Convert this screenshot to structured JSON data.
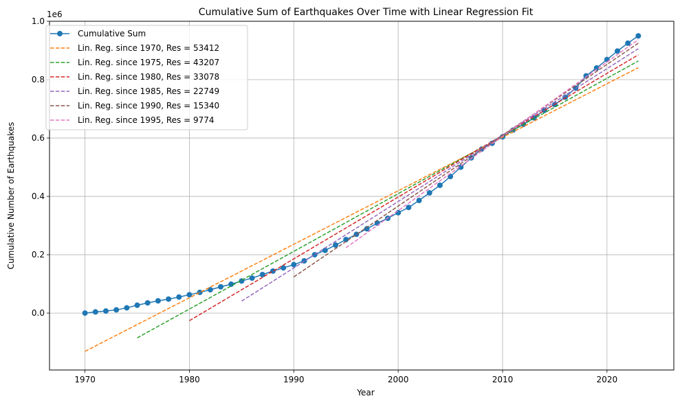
{
  "chart_data": {
    "type": "line",
    "title": "Cumulative Sum of Earthquakes Over Time with Linear Regression Fit",
    "xlabel": "Year",
    "ylabel": "Cumulative Number of Earthquakes",
    "y_offset_label": "1e6",
    "xlim": [
      1966.6,
      2026.4
    ],
    "ylim": [
      -0.195,
      1.0
    ],
    "x_ticks": [
      1970,
      1980,
      1990,
      2000,
      2010,
      2020
    ],
    "y_ticks": [
      0.0,
      0.2,
      0.4,
      0.6,
      0.8,
      1.0
    ],
    "y_tick_labels": [
      "0.0",
      "0.2",
      "0.4",
      "0.6",
      "0.8",
      "1.0"
    ],
    "grid": true,
    "legend_position": "upper-left",
    "series": [
      {
        "name": "Cumulative Sum",
        "kind": "line-marker",
        "color": "#1f77b4",
        "x": [
          1970,
          1971,
          1972,
          1973,
          1974,
          1975,
          1976,
          1977,
          1978,
          1979,
          1980,
          1981,
          1982,
          1983,
          1984,
          1985,
          1986,
          1987,
          1988,
          1989,
          1990,
          1991,
          1992,
          1993,
          1994,
          1995,
          1996,
          1997,
          1998,
          1999,
          2000,
          2001,
          2002,
          2003,
          2004,
          2005,
          2006,
          2007,
          2008,
          2009,
          2010,
          2011,
          2012,
          2013,
          2014,
          2015,
          2016,
          2017,
          2018,
          2019,
          2020,
          2021,
          2022,
          2023
        ],
        "y": [
          0.0,
          0.004,
          0.007,
          0.011,
          0.018,
          0.027,
          0.035,
          0.042,
          0.048,
          0.055,
          0.063,
          0.071,
          0.08,
          0.09,
          0.099,
          0.11,
          0.12,
          0.132,
          0.144,
          0.155,
          0.166,
          0.179,
          0.2,
          0.215,
          0.233,
          0.252,
          0.27,
          0.289,
          0.308,
          0.325,
          0.344,
          0.362,
          0.386,
          0.412,
          0.438,
          0.468,
          0.5,
          0.532,
          0.562,
          0.582,
          0.604,
          0.627,
          0.647,
          0.669,
          0.695,
          0.715,
          0.74,
          0.771,
          0.813,
          0.84,
          0.869,
          0.898,
          0.925,
          0.95
        ]
      },
      {
        "name": "Lin. Reg. since 1970, Res = 53412",
        "kind": "dashed",
        "color": "#ff7f0e",
        "x": [
          1970,
          2023
        ],
        "y": [
          -0.131,
          0.841
        ]
      },
      {
        "name": "Lin. Reg. since 1975, Res = 43207",
        "kind": "dashed",
        "color": "#2ca02c",
        "x": [
          1975,
          2023
        ],
        "y": [
          -0.085,
          0.864
        ]
      },
      {
        "name": "Lin. Reg. since 1980, Res = 33078",
        "kind": "dashed",
        "color": "#d62728",
        "x": [
          1980,
          2023
        ],
        "y": [
          -0.026,
          0.885
        ]
      },
      {
        "name": "Lin. Reg. since 1985, Res = 22749",
        "kind": "dashed",
        "color": "#9467bd",
        "x": [
          1985,
          2023
        ],
        "y": [
          0.041,
          0.906
        ]
      },
      {
        "name": "Lin. Reg. since 1990, Res = 15340",
        "kind": "dashed",
        "color": "#8c564b",
        "x": [
          1990,
          2023
        ],
        "y": [
          0.124,
          0.925
        ]
      },
      {
        "name": "Lin. Reg. since 1995, Res = 9774",
        "kind": "dashed",
        "color": "#e377c2",
        "x": [
          1995,
          2023
        ],
        "y": [
          0.224,
          0.937
        ]
      }
    ]
  }
}
